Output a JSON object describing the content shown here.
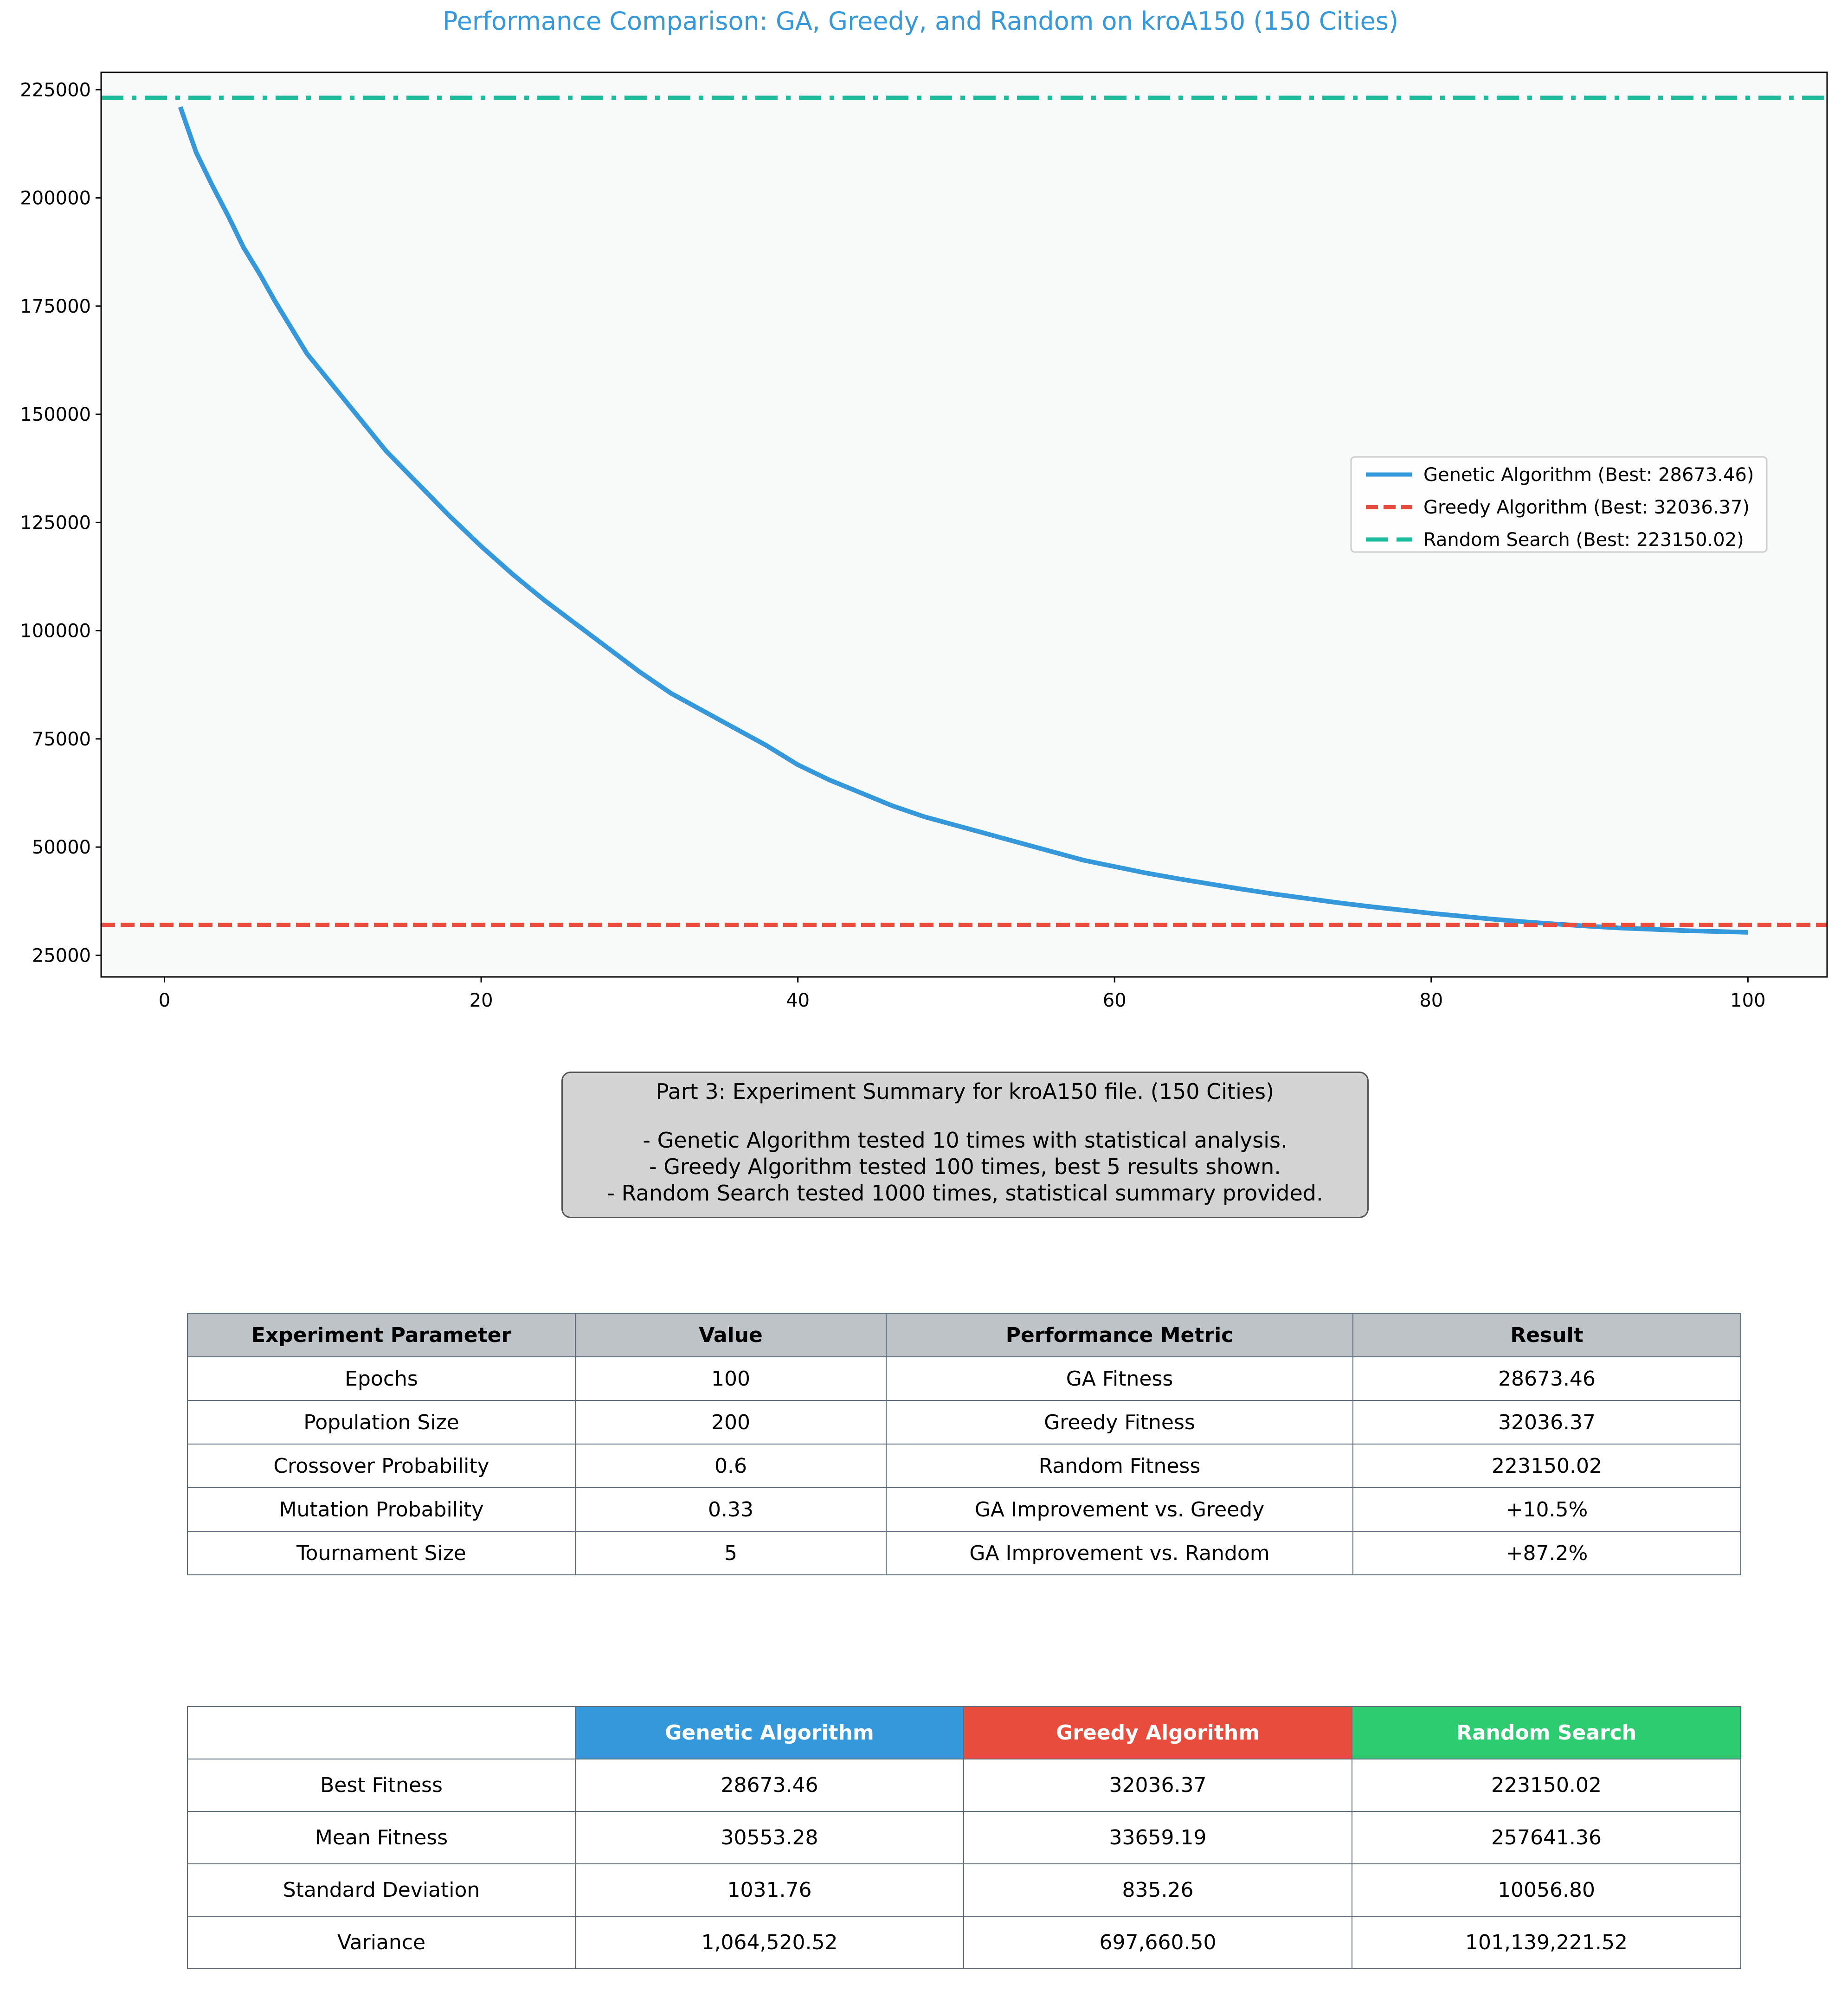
{
  "chart_data": {
    "type": "line",
    "title": "Performance Comparison: GA, Greedy, and Random on kroA150 (150 Cities)",
    "xlabel": "",
    "ylabel": "",
    "xlim": [
      -4,
      105
    ],
    "ylim": [
      20000,
      229000
    ],
    "x_ticks": [
      0,
      20,
      40,
      60,
      80,
      100
    ],
    "y_ticks": [
      25000,
      50000,
      75000,
      100000,
      125000,
      150000,
      175000,
      200000,
      225000
    ],
    "grid": false,
    "legend_position": "center-right",
    "series": [
      {
        "name": "Genetic Algorithm (Best: 28673.46)",
        "style": "solid",
        "color": "#3498db",
        "x": [
          1,
          2,
          3,
          4,
          5,
          6,
          7,
          8,
          9,
          10,
          12,
          14,
          16,
          18,
          20,
          22,
          24,
          26,
          28,
          30,
          32,
          34,
          36,
          38,
          40,
          42,
          44,
          46,
          48,
          50,
          52,
          54,
          56,
          58,
          60,
          62,
          64,
          66,
          68,
          70,
          72,
          74,
          76,
          78,
          80,
          82,
          84,
          86,
          88,
          90,
          92,
          94,
          96,
          98,
          100
        ],
        "y": [
          221000,
          210500,
          203000,
          196000,
          188500,
          182500,
          176000,
          170000,
          164000,
          159500,
          150500,
          141500,
          134000,
          126500,
          119500,
          113000,
          107000,
          101500,
          96000,
          90500,
          85500,
          81500,
          77500,
          73500,
          69000,
          65500,
          62500,
          59500,
          57000,
          55000,
          53000,
          51000,
          49000,
          47000,
          45500,
          44000,
          42700,
          41500,
          40300,
          39200,
          38200,
          37200,
          36300,
          35500,
          34700,
          34000,
          33300,
          32700,
          32200,
          31700,
          31300,
          31000,
          30700,
          30500,
          30300
        ]
      },
      {
        "name": "Greedy Algorithm (Best: 32036.37)",
        "style": "dashed",
        "color": "#e74c3c",
        "constant": 32036.37
      },
      {
        "name": "Random Search (Best: 223150.02)",
        "style": "dashdot",
        "color": "#1abc9c",
        "constant": 223150.02
      }
    ]
  },
  "summary": {
    "heading": "Part 3: Experiment Summary for kroA150 file. (150 Cities)",
    "lines": [
      "- Genetic Algorithm tested 10 times with statistical analysis.",
      "- Greedy Algorithm tested 100 times, best 5 results shown.",
      "- Random Search tested 1000 times, statistical summary provided."
    ]
  },
  "params_table": {
    "headers": [
      "Experiment Parameter",
      "Value",
      "Performance Metric",
      "Result"
    ],
    "rows": [
      [
        "Epochs",
        "100",
        "GA Fitness",
        "28673.46"
      ],
      [
        "Population Size",
        "200",
        "Greedy Fitness",
        "32036.37"
      ],
      [
        "Crossover Probability",
        "0.6",
        "Random Fitness",
        "223150.02"
      ],
      [
        "Mutation Probability",
        "0.33",
        "GA Improvement vs. Greedy",
        "+10.5%"
      ],
      [
        "Tournament Size",
        "5",
        "GA Improvement vs. Random",
        "+87.2%"
      ]
    ]
  },
  "stats_table": {
    "headers": [
      "",
      "Genetic Algorithm",
      "Greedy Algorithm",
      "Random Search"
    ],
    "header_colors": [
      "#ffffff",
      "#3498db",
      "#e74c3c",
      "#2ecc71"
    ],
    "rows": [
      [
        "Best Fitness",
        "28673.46",
        "32036.37",
        "223150.02"
      ],
      [
        "Mean Fitness",
        "30553.28",
        "33659.19",
        "257641.36"
      ],
      [
        "Standard Deviation",
        "1031.76",
        "835.26",
        "10056.80"
      ],
      [
        "Variance",
        "1,064,520.52",
        "697,660.50",
        "101,139,221.52"
      ]
    ]
  }
}
